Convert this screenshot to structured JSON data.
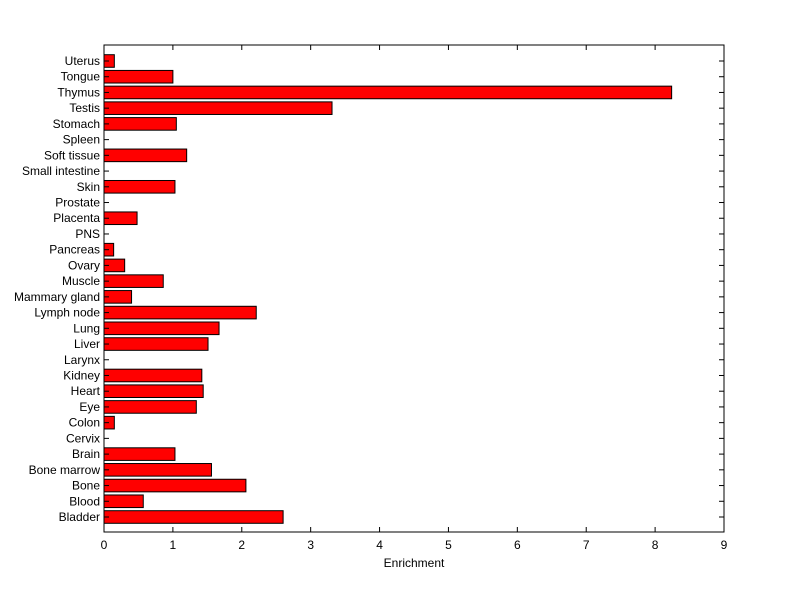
{
  "chart_data": {
    "type": "bar",
    "orientation": "horizontal",
    "categories": [
      "Uterus",
      "Tongue",
      "Thymus",
      "Testis",
      "Stomach",
      "Spleen",
      "Soft tissue",
      "Small intestine",
      "Skin",
      "Prostate",
      "Placenta",
      "PNS",
      "Pancreas",
      "Ovary",
      "Muscle",
      "Mammary gland",
      "Lymph node",
      "Lung",
      "Liver",
      "Larynx",
      "Kidney",
      "Heart",
      "Eye",
      "Colon",
      "Cervix",
      "Brain",
      "Bone marrow",
      "Bone",
      "Blood",
      "Bladder"
    ],
    "values": [
      0.15,
      1.0,
      8.24,
      3.31,
      1.05,
      0,
      1.2,
      0,
      1.03,
      0,
      0.48,
      0,
      0.14,
      0.3,
      0.86,
      0.4,
      2.21,
      1.67,
      1.51,
      0,
      1.42,
      1.44,
      1.34,
      0.15,
      0,
      1.03,
      1.56,
      2.06,
      0.57,
      2.6
    ],
    "title": "",
    "xlabel": "Enrichment",
    "ylabel": "",
    "xlim": [
      0,
      9
    ],
    "xticks": [
      "0",
      "1",
      "2",
      "3",
      "4",
      "5",
      "6",
      "7",
      "8",
      "9"
    ],
    "grid": false,
    "bar_color": "#ff0000",
    "edge_color": "#000000"
  }
}
